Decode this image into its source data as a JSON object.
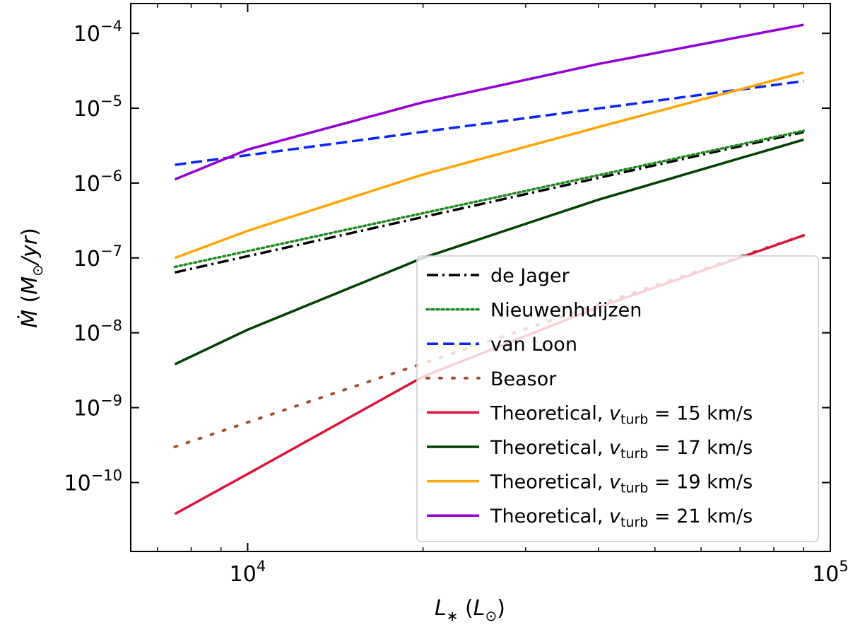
{
  "chart_data": {
    "type": "line",
    "xscale": "log",
    "yscale": "log",
    "xlabel": "L_* (L_⊙)",
    "ylabel": "Ṁ (M_⊙/yr)",
    "xlim": [
      6300,
      100000
    ],
    "ylim": [
      1.2e-11,
      0.00025
    ],
    "xticks": [
      {
        "value": 10000,
        "base": "10",
        "exp": "4"
      },
      {
        "value": 100000,
        "base": "10",
        "exp": "5"
      }
    ],
    "yticks": [
      {
        "value": 1e-10,
        "base": "10",
        "exp": "−10"
      },
      {
        "value": 1e-09,
        "base": "10",
        "exp": "−9"
      },
      {
        "value": 1e-08,
        "base": "10",
        "exp": "−8"
      },
      {
        "value": 1e-07,
        "base": "10",
        "exp": "−7"
      },
      {
        "value": 1e-06,
        "base": "10",
        "exp": "−6"
      },
      {
        "value": 1e-05,
        "base": "10",
        "exp": "−5"
      },
      {
        "value": 0.0001,
        "base": "10",
        "exp": "−4"
      }
    ],
    "grid": false,
    "legend_position": "lower-right",
    "series": [
      {
        "name": "de Jager",
        "label_parts": [
          "de Jager"
        ],
        "color": "#000000",
        "style": "dashdot",
        "x": [
          7500,
          90000
        ],
        "y": [
          6.4e-08,
          4.8e-06
        ]
      },
      {
        "name": "Nieuwenhuijzen",
        "label_parts": [
          "Nieuwenhuijzen"
        ],
        "color": "#1e8a1e",
        "style": "dotted",
        "x": [
          7500,
          90000
        ],
        "y": [
          7.6e-08,
          5e-06
        ]
      },
      {
        "name": "van Loon",
        "label_parts": [
          "van Loon"
        ],
        "color": "#0b24fb",
        "style": "dashed",
        "x": [
          7500,
          90000
        ],
        "y": [
          1.75e-06,
          2.3e-05
        ]
      },
      {
        "name": "Beasor",
        "label_parts": [
          "Beasor"
        ],
        "color": "#a0522d",
        "style": "loosedot",
        "x": [
          7500,
          90000
        ],
        "y": [
          3e-10,
          2e-07
        ]
      },
      {
        "name": "Theoretical, v_turb = 15 km/s",
        "label_parts": [
          "Theoretical, ",
          "v",
          "turb",
          " = 15 km/s"
        ],
        "color": "#dc143c",
        "style": "solid",
        "x": [
          7500,
          10000,
          20000,
          40000,
          90000
        ],
        "y": [
          3.8e-11,
          1.3e-10,
          2.6e-09,
          2.2e-08,
          2e-07
        ]
      },
      {
        "name": "Theoretical, v_turb = 17 km/s",
        "label_parts": [
          "Theoretical, ",
          "v",
          "turb",
          " = 17 km/s"
        ],
        "color": "#004000",
        "style": "solid",
        "x": [
          7500,
          10000,
          20000,
          40000,
          90000
        ],
        "y": [
          3.8e-09,
          1.1e-08,
          1e-07,
          6e-07,
          3.8e-06
        ]
      },
      {
        "name": "Theoretical, v_turb = 19 km/s",
        "label_parts": [
          "Theoretical, ",
          "v",
          "turb",
          " = 19 km/s"
        ],
        "color": "#ffa500",
        "style": "solid",
        "x": [
          7500,
          10000,
          20000,
          40000,
          90000
        ],
        "y": [
          1e-07,
          2.3e-07,
          1.3e-06,
          5.6e-06,
          3e-05
        ]
      },
      {
        "name": "Theoretical, v_turb = 21 km/s",
        "label_parts": [
          "Theoretical, ",
          "v",
          "turb",
          " = 21 km/s"
        ],
        "color": "#9400d3",
        "style": "solid",
        "x": [
          7500,
          10000,
          20000,
          40000,
          90000
        ],
        "y": [
          1.12e-06,
          2.8e-06,
          1.2e-05,
          3.9e-05,
          0.00013
        ]
      }
    ]
  }
}
